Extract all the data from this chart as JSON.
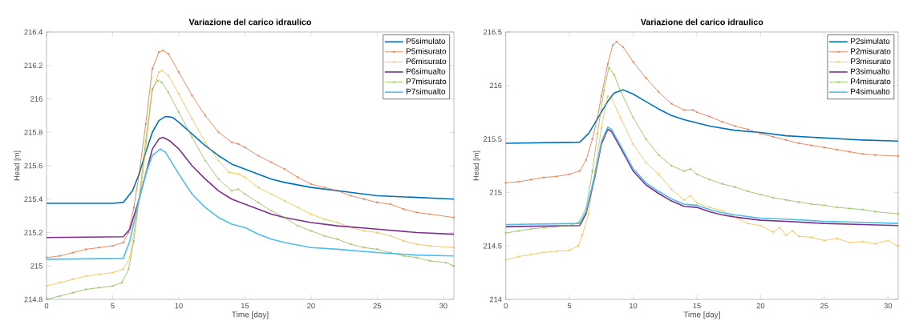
{
  "chart_data": [
    {
      "type": "line",
      "title": "Variazione del carico idraulico",
      "xlabel": "Time [day]",
      "ylabel": "Head [m]",
      "xlim": [
        0,
        30.8
      ],
      "ylim": [
        214.8,
        216.4
      ],
      "xticks": [
        0,
        5,
        10,
        15,
        20,
        25,
        30
      ],
      "yticks": [
        214.8,
        215,
        215.2,
        215.4,
        215.6,
        215.8,
        216,
        216.2,
        216.4
      ],
      "legend": "top right",
      "grid": false,
      "series": [
        {
          "name": "P5simulato",
          "color": "#0072bd",
          "x": [
            0,
            5,
            5.8,
            6.5,
            7,
            7.5,
            8,
            8.5,
            9,
            9.5,
            10,
            11,
            12,
            13,
            14,
            15,
            16,
            17,
            18,
            20,
            22,
            25,
            28,
            30.8
          ],
          "values": [
            215.375,
            215.375,
            215.38,
            215.45,
            215.55,
            215.68,
            215.8,
            215.87,
            215.895,
            215.89,
            215.86,
            215.79,
            215.72,
            215.66,
            215.61,
            215.58,
            215.55,
            215.52,
            215.5,
            215.47,
            215.45,
            215.42,
            215.41,
            215.4
          ]
        },
        {
          "name": "P5misurato",
          "color": "#d95319",
          "marker": "cross",
          "x": [
            0,
            1,
            2,
            3,
            4,
            5,
            5.8,
            6.2,
            6.6,
            7,
            7.5,
            8,
            8.5,
            8.8,
            9.2,
            10,
            11,
            12,
            13,
            14,
            14.5,
            15,
            16,
            17,
            18,
            19,
            20,
            21,
            22,
            23,
            24,
            25,
            26,
            27,
            28,
            29,
            30.8
          ],
          "values": [
            215.05,
            215.06,
            215.08,
            215.1,
            215.11,
            215.12,
            215.14,
            215.2,
            215.35,
            215.55,
            215.85,
            216.18,
            216.28,
            216.29,
            216.27,
            216.16,
            216.02,
            215.9,
            215.8,
            215.74,
            215.73,
            215.71,
            215.66,
            215.62,
            215.58,
            215.53,
            215.49,
            215.47,
            215.45,
            215.42,
            215.4,
            215.38,
            215.37,
            215.34,
            215.32,
            215.31,
            215.29
          ]
        },
        {
          "name": "P6misurato",
          "color": "#edb120",
          "marker": "cross",
          "x": [
            0,
            1,
            2,
            3,
            4,
            5,
            5.8,
            6.3,
            6.8,
            7.2,
            7.5,
            8,
            8.5,
            8.7,
            9.2,
            10,
            11,
            12,
            13,
            13.8,
            14.5,
            15,
            16,
            17,
            18,
            19,
            20,
            21,
            22,
            23,
            24,
            25,
            26,
            27,
            28,
            29,
            30.8
          ],
          "values": [
            214.88,
            214.9,
            214.92,
            214.94,
            214.95,
            214.96,
            214.98,
            215.05,
            215.3,
            215.5,
            215.7,
            216.05,
            216.16,
            216.17,
            216.14,
            216.03,
            215.88,
            215.74,
            215.63,
            215.56,
            215.55,
            215.53,
            215.47,
            215.43,
            215.39,
            215.35,
            215.31,
            215.28,
            215.26,
            215.23,
            215.21,
            215.2,
            215.18,
            215.15,
            215.13,
            215.12,
            215.11
          ]
        },
        {
          "name": "P6simualto",
          "color": "#7e2f8e",
          "x": [
            0,
            5.8,
            6.3,
            7,
            7.5,
            8,
            8.5,
            8.8,
            9.3,
            10,
            11,
            12,
            13,
            14,
            15,
            16,
            17,
            18,
            20,
            22,
            25,
            28,
            30.8
          ],
          "values": [
            215.17,
            215.175,
            215.22,
            215.4,
            215.55,
            215.7,
            215.76,
            215.77,
            215.75,
            215.7,
            215.6,
            215.52,
            215.45,
            215.4,
            215.37,
            215.34,
            215.31,
            215.29,
            215.26,
            215.24,
            215.22,
            215.2,
            215.19
          ]
        },
        {
          "name": "P7misurato",
          "color": "#77ac30",
          "marker": "cross",
          "x": [
            0,
            1,
            2,
            3,
            4,
            5,
            5.7,
            6.2,
            6.6,
            7,
            7.5,
            8,
            8.4,
            8.7,
            9.2,
            10,
            11,
            12,
            13,
            14,
            14.5,
            15,
            16,
            17,
            18,
            19,
            20,
            21,
            22,
            23,
            24,
            25,
            26,
            27,
            28,
            29,
            30.2,
            30.8
          ],
          "values": [
            214.8,
            214.82,
            214.84,
            214.86,
            214.87,
            214.88,
            214.9,
            214.98,
            215.15,
            215.4,
            215.75,
            216.06,
            216.11,
            216.1,
            216.04,
            215.92,
            215.77,
            215.63,
            215.52,
            215.45,
            215.46,
            215.43,
            215.38,
            215.33,
            215.29,
            215.24,
            215.21,
            215.18,
            215.16,
            215.13,
            215.11,
            215.1,
            215.08,
            215.06,
            215.05,
            215.03,
            215.02,
            215.0
          ]
        },
        {
          "name": "P7simualto",
          "color": "#4dbeee",
          "x": [
            0,
            5.8,
            6.3,
            7,
            7.5,
            8,
            8.6,
            9,
            10,
            11,
            12,
            13,
            14,
            15,
            16,
            17,
            18,
            20,
            22,
            25,
            28,
            30.8
          ],
          "values": [
            215.04,
            215.045,
            215.15,
            215.4,
            215.55,
            215.66,
            215.7,
            215.68,
            215.55,
            215.43,
            215.35,
            215.29,
            215.25,
            215.23,
            215.19,
            215.16,
            215.14,
            215.11,
            215.1,
            215.08,
            215.065,
            215.06
          ]
        }
      ]
    },
    {
      "type": "line",
      "title": "Variazione del carico idraulico",
      "xlabel": "Time [day]",
      "ylabel": "Head [m]",
      "xlim": [
        0,
        30.8
      ],
      "ylim": [
        214,
        216.5
      ],
      "xticks": [
        0,
        5,
        10,
        15,
        20,
        25,
        30
      ],
      "yticks": [
        214,
        214.5,
        215,
        215.5,
        216,
        216.5
      ],
      "legend": "top right",
      "grid": false,
      "series": [
        {
          "name": "P2simulato",
          "color": "#0072bd",
          "x": [
            0,
            5.8,
            6.5,
            7,
            7.5,
            8,
            8.5,
            9.2,
            10,
            11,
            12,
            13,
            14,
            15,
            16,
            17,
            18,
            20,
            22,
            25,
            28,
            30.8
          ],
          "values": [
            215.46,
            215.47,
            215.55,
            215.65,
            215.75,
            215.85,
            215.93,
            215.96,
            215.92,
            215.85,
            215.78,
            215.72,
            215.68,
            215.65,
            215.62,
            215.6,
            215.58,
            215.56,
            215.53,
            215.51,
            215.49,
            215.48
          ]
        },
        {
          "name": "P2misurato",
          "color": "#d95319",
          "marker": "cross",
          "x": [
            0,
            1,
            2,
            3,
            4,
            5,
            5.8,
            6.3,
            6.8,
            7.2,
            7.5,
            8,
            8.4,
            8.7,
            9.2,
            10,
            11,
            12,
            13,
            14,
            14.7,
            15,
            16,
            17,
            18,
            19,
            20,
            21,
            22,
            23,
            24,
            25,
            26,
            27,
            28,
            29,
            30.8
          ],
          "values": [
            215.09,
            215.1,
            215.12,
            215.14,
            215.15,
            215.17,
            215.2,
            215.3,
            215.5,
            215.7,
            215.9,
            216.2,
            216.38,
            216.41,
            216.36,
            216.22,
            216.07,
            215.94,
            215.83,
            215.77,
            215.77,
            215.75,
            215.71,
            215.66,
            215.62,
            215.59,
            215.55,
            215.52,
            215.49,
            215.46,
            215.44,
            215.42,
            215.4,
            215.38,
            215.36,
            215.35,
            215.34
          ]
        },
        {
          "name": "P3misurato",
          "color": "#edb120",
          "marker": "cross",
          "x": [
            0,
            1,
            2,
            3,
            4,
            5,
            5.7,
            6,
            6.5,
            7,
            7.5,
            8,
            8.3,
            9,
            10,
            11,
            12,
            13,
            14,
            14.5,
            15,
            16,
            17,
            18,
            19,
            20,
            21,
            21.5,
            22,
            22.5,
            23,
            24,
            25,
            26,
            27,
            28,
            29,
            30,
            30.8
          ],
          "values": [
            214.37,
            214.4,
            214.42,
            214.44,
            214.45,
            214.46,
            214.5,
            214.6,
            214.8,
            215.2,
            215.6,
            215.9,
            215.88,
            215.7,
            215.45,
            215.28,
            215.17,
            215.03,
            214.93,
            214.97,
            214.9,
            214.86,
            214.83,
            214.77,
            214.71,
            214.69,
            214.63,
            214.67,
            214.6,
            214.64,
            214.59,
            214.58,
            214.55,
            214.57,
            214.53,
            214.54,
            214.52,
            214.55,
            214.5
          ]
        },
        {
          "name": "P3simualto",
          "color": "#7e2f8e",
          "x": [
            0,
            5.8,
            6.3,
            7,
            7.5,
            8,
            8.3,
            9,
            10,
            11,
            12,
            13,
            14,
            15,
            16,
            17,
            18,
            20,
            22,
            25,
            28,
            30.8
          ],
          "values": [
            214.68,
            214.69,
            214.8,
            215.15,
            215.45,
            215.59,
            215.57,
            215.42,
            215.2,
            215.07,
            214.99,
            214.92,
            214.87,
            214.86,
            214.82,
            214.79,
            214.77,
            214.74,
            214.73,
            214.71,
            214.7,
            214.69
          ]
        },
        {
          "name": "P4misurato",
          "color": "#77ac30",
          "marker": "cross",
          "x": [
            0,
            1,
            2,
            3,
            4,
            5,
            5.7,
            6.3,
            6.8,
            7.2,
            7.7,
            8.1,
            8.5,
            9,
            10,
            11,
            12,
            13,
            14,
            14.5,
            15,
            16,
            17,
            18,
            19,
            20,
            21,
            22,
            23,
            24,
            25,
            26,
            27,
            28,
            29,
            30.8
          ],
          "values": [
            214.62,
            214.64,
            214.66,
            214.67,
            214.68,
            214.69,
            214.72,
            214.85,
            215.2,
            215.55,
            215.95,
            216.17,
            216.1,
            215.95,
            215.7,
            215.5,
            215.35,
            215.25,
            215.2,
            215.22,
            215.17,
            215.12,
            215.08,
            215.05,
            215.01,
            214.98,
            214.95,
            214.93,
            214.91,
            214.89,
            214.88,
            214.86,
            214.85,
            214.84,
            214.82,
            214.8
          ]
        },
        {
          "name": "P4simualto",
          "color": "#4dbeee",
          "x": [
            0,
            5.8,
            6.3,
            7,
            7.5,
            8,
            8.3,
            9,
            10,
            11,
            12,
            13,
            14,
            15,
            16,
            17,
            18,
            20,
            22,
            25,
            28,
            30.8
          ],
          "values": [
            214.7,
            214.71,
            214.82,
            215.17,
            215.47,
            215.61,
            215.59,
            215.44,
            215.22,
            215.09,
            215.01,
            214.94,
            214.89,
            214.88,
            214.84,
            214.81,
            214.79,
            214.76,
            214.75,
            214.73,
            214.72,
            214.71
          ]
        }
      ]
    }
  ]
}
